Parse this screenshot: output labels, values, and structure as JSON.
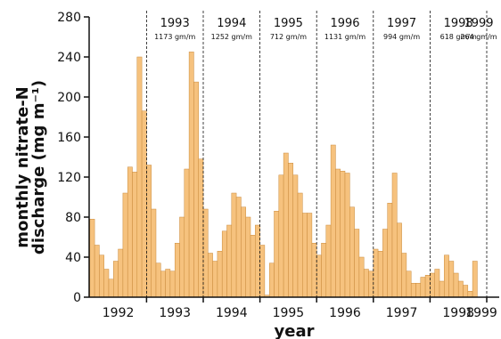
{
  "chart_data": {
    "type": "bar",
    "title": "",
    "xlabel": "year",
    "ylabel_line1": "monthly nitrate-N",
    "ylabel_line2": "discharge (mg m⁻¹)",
    "ylim": [
      0,
      280
    ],
    "yticks": [
      "0",
      "40",
      "80",
      "120",
      "160",
      "200",
      "240",
      "280"
    ],
    "year_ticks": [
      "1992",
      "1993",
      "1994",
      "1995",
      "1996",
      "1997",
      "1998",
      "1999"
    ],
    "start_year": 1992,
    "start_month": 1,
    "bar_color": "#f6c27e",
    "bar_edge_color": "#c98a3c",
    "annual_totals": [
      {
        "year": "1993",
        "total": "1173 gm/m"
      },
      {
        "year": "1994",
        "total": "1252 gm/m"
      },
      {
        "year": "1995",
        "total": "712 gm/m"
      },
      {
        "year": "1996",
        "total": "1131 gm/m"
      },
      {
        "year": "1997",
        "total": "994 gm/m"
      },
      {
        "year": "1998",
        "total": "618 gm/m"
      },
      {
        "year": "1999",
        "total": "264 gm/m"
      }
    ],
    "values": [
      78,
      52,
      42,
      28,
      18,
      36,
      48,
      104,
      130,
      125,
      240,
      186,
      132,
      88,
      34,
      26,
      28,
      26,
      54,
      80,
      128,
      245,
      215,
      138,
      88,
      44,
      36,
      46,
      66,
      72,
      104,
      100,
      90,
      80,
      62,
      72,
      52,
      2,
      34,
      86,
      122,
      144,
      134,
      122,
      104,
      84,
      84,
      54,
      42,
      54,
      72,
      152,
      128,
      126,
      124,
      90,
      68,
      40,
      28,
      26,
      48,
      46,
      68,
      94,
      124,
      74,
      44,
      26,
      14,
      14,
      20,
      22,
      24,
      28,
      16,
      42,
      36,
      24,
      16,
      12,
      6,
      36
    ]
  }
}
